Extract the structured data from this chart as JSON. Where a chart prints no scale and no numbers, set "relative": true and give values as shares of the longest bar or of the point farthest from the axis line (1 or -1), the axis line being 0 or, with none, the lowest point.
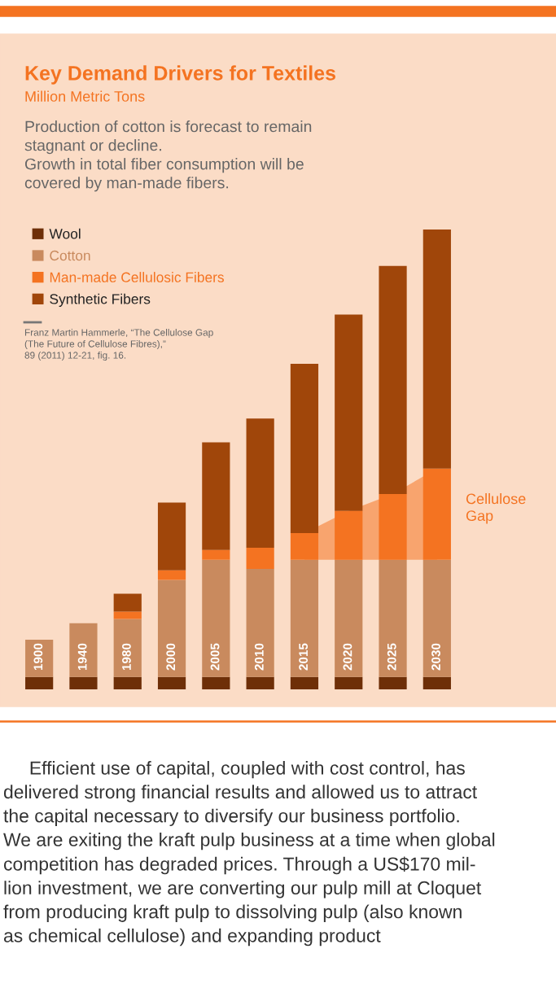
{
  "chart_data": {
    "type": "bar",
    "stacked": true,
    "relative": true,
    "title": "Key Demand Drivers for Textiles",
    "subtitle": "Million Metric Tons",
    "categories": [
      "1900",
      "1940",
      "1980",
      "2000",
      "2005",
      "2010",
      "2015",
      "2020",
      "2025",
      "2030"
    ],
    "series": [
      {
        "name": "Wool",
        "color": "#6e2f08",
        "values": [
          0.027,
          0.027,
          0.027,
          0.027,
          0.027,
          0.027,
          0.027,
          0.027,
          0.027,
          0.027
        ]
      },
      {
        "name": "Cotton",
        "color": "#c98a5e",
        "values": [
          0.081,
          0.117,
          0.126,
          0.211,
          0.255,
          0.235,
          0.255,
          0.255,
          0.255,
          0.255
        ]
      },
      {
        "name": "Man-made Cellulosic Fibers",
        "color": "#f47321",
        "values": [
          0,
          0,
          0.016,
          0.021,
          0.021,
          0.046,
          0.058,
          0.106,
          0.143,
          0.198
        ]
      },
      {
        "name": "Synthetic Fibers",
        "color": "#a0460a",
        "values": [
          0,
          0,
          0.039,
          0.147,
          0.234,
          0.281,
          0.368,
          0.427,
          0.496,
          0.52
        ]
      }
    ],
    "legend": "top left",
    "annotations": [
      "Production of cotton is forecast to remain\nstagnant or decline.\nGrowth in total fiber consumption will be\ncovered by man-made fibers.",
      "Franz Martin Hammerle, “The Cellulose Gap\n(The Future of Cellulose Fibres),”\n89 (2011) 12-21, fig. 16.",
      "Cellulose\nGap",
      "     Efficient use of capital, coupled with cost control, has\ndelivered strong financial results and allowed us to attract\nthe capital necessary to diversify our business portfolio.\nWe are exiting the kraft pulp business at a time when global\ncompetition has degraded prices. Through a US$170 mil-\nlion investment, we are converting our pulp mill at Cloquet\nfrom producing kraft pulp to dissolving pulp (also known\nas chemical cellulose) and expanding product"
    ]
  }
}
